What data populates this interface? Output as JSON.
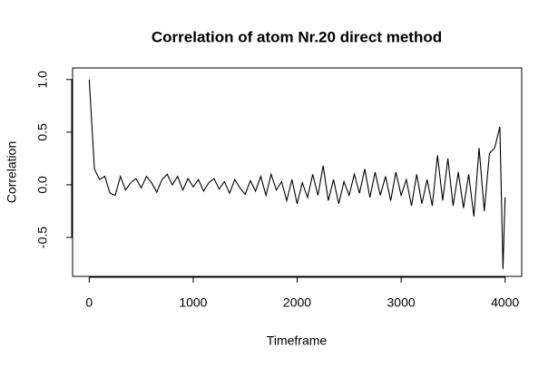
{
  "chart_data": {
    "type": "line",
    "title": "Correlation of atom Nr.20 direct method",
    "x_label": "Timeframe",
    "y_label": "Correlation",
    "x": [
      0,
      50,
      100,
      150,
      200,
      250,
      300,
      350,
      400,
      450,
      500,
      550,
      600,
      650,
      700,
      750,
      800,
      850,
      900,
      950,
      1000,
      1050,
      1100,
      1150,
      1200,
      1250,
      1300,
      1350,
      1400,
      1450,
      1500,
      1550,
      1600,
      1650,
      1700,
      1750,
      1800,
      1850,
      1900,
      1950,
      2000,
      2050,
      2100,
      2150,
      2200,
      2250,
      2300,
      2350,
      2400,
      2450,
      2500,
      2550,
      2600,
      2650,
      2700,
      2750,
      2800,
      2850,
      2900,
      2950,
      3000,
      3050,
      3100,
      3150,
      3200,
      3250,
      3300,
      3350,
      3400,
      3450,
      3500,
      3550,
      3600,
      3650,
      3700,
      3750,
      3800,
      3850,
      3900,
      3950,
      3980,
      4000
    ],
    "series": [
      {
        "name": "Correlation",
        "color": "#000000",
        "values": [
          1.0,
          0.15,
          0.05,
          0.08,
          -0.08,
          -0.1,
          0.08,
          -0.05,
          0.02,
          0.06,
          -0.03,
          0.08,
          0.02,
          -0.07,
          0.05,
          0.1,
          0.0,
          0.08,
          -0.05,
          0.06,
          -0.02,
          0.05,
          -0.06,
          0.02,
          0.06,
          -0.04,
          0.03,
          -0.08,
          0.05,
          -0.03,
          -0.09,
          0.04,
          -0.06,
          0.08,
          -0.1,
          0.1,
          -0.05,
          0.03,
          -0.15,
          0.05,
          -0.18,
          0.02,
          -0.12,
          0.1,
          -0.1,
          0.18,
          -0.15,
          0.05,
          -0.18,
          0.03,
          -0.1,
          0.1,
          -0.08,
          0.15,
          -0.12,
          0.12,
          -0.1,
          0.08,
          -0.15,
          0.12,
          -0.1,
          0.05,
          -0.2,
          0.1,
          -0.18,
          0.05,
          -0.2,
          0.28,
          -0.15,
          0.25,
          -0.2,
          0.12,
          -0.22,
          0.1,
          -0.3,
          0.35,
          -0.25,
          0.3,
          0.35,
          0.55,
          -0.8,
          -0.12
        ]
      }
    ],
    "xlim": [
      -160,
      4160
    ],
    "ylim": [
      -0.87,
      1.11
    ],
    "xticks": [
      0,
      1000,
      2000,
      3000,
      4000
    ],
    "yticks": [
      -0.5,
      {
        "value": 0,
        "label": "0.0"
      },
      0.5,
      {
        "value": 1,
        "label": "1.0"
      }
    ]
  }
}
